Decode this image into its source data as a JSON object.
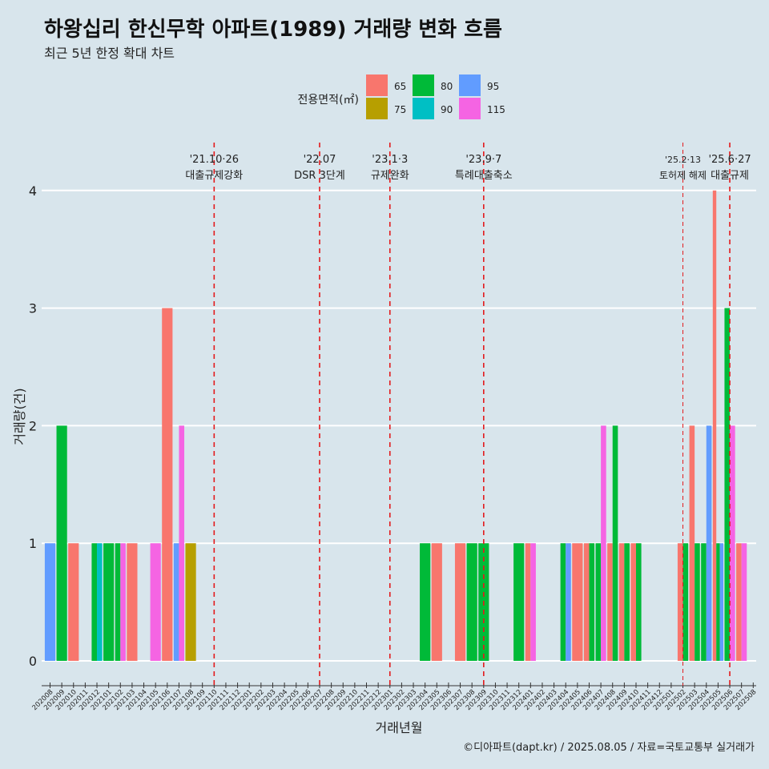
{
  "title": "하왕십리 한신무학 아파트(1989) 거래량 변화 흐름",
  "subtitle": "최근 5년 한정 확대 차트",
  "caption": "©디아파트(dapt.kr) / 2025.08.05 / 자료=국토교통부 실거래가",
  "colors": {
    "65": "#f8766d",
    "75": "#b79f00",
    "80": "#00ba38",
    "90": "#00bfc4",
    "95": "#619cff",
    "115": "#f564e3"
  },
  "chart_data": {
    "type": "bar",
    "xlabel": "거래년월",
    "ylabel": "거래량(건)",
    "ylim": [
      0,
      4
    ],
    "yticks": [
      0,
      1,
      2,
      3,
      4
    ],
    "grid": "horizontal",
    "legend": {
      "title": "전용면적(㎡)",
      "placement": "top-center",
      "entries": [
        "65",
        "75",
        "80",
        "90",
        "95",
        "115"
      ]
    },
    "categories": [
      "202008",
      "202009",
      "202010",
      "202011",
      "202012",
      "202101",
      "202102",
      "202103",
      "202104",
      "202105",
      "202106",
      "202107",
      "202108",
      "202109",
      "202110",
      "202111",
      "202112",
      "202201",
      "202202",
      "202203",
      "202204",
      "202205",
      "202206",
      "202207",
      "202208",
      "202209",
      "202210",
      "202211",
      "202212",
      "202301",
      "202302",
      "202303",
      "202304",
      "202305",
      "202306",
      "202307",
      "202308",
      "202309",
      "202310",
      "202311",
      "202312",
      "202401",
      "202402",
      "202403",
      "202404",
      "202405",
      "202406",
      "202407",
      "202408",
      "202409",
      "202410",
      "202411",
      "202412",
      "202501",
      "202502",
      "202503",
      "202504",
      "202505",
      "202506",
      "202507",
      "202508"
    ],
    "bars": [
      {
        "month": "202008",
        "area": "95",
        "count": 1
      },
      {
        "month": "202009",
        "area": "80",
        "count": 2
      },
      {
        "month": "202010",
        "area": "65",
        "count": 1
      },
      {
        "month": "202012",
        "area": "80",
        "count": 1
      },
      {
        "month": "202012",
        "area": "90",
        "count": 1
      },
      {
        "month": "202101",
        "area": "80",
        "count": 1
      },
      {
        "month": "202102",
        "area": "80",
        "count": 1
      },
      {
        "month": "202102",
        "area": "115",
        "count": 1
      },
      {
        "month": "202103",
        "area": "65",
        "count": 1
      },
      {
        "month": "202105",
        "area": "115",
        "count": 1
      },
      {
        "month": "202106",
        "area": "65",
        "count": 3
      },
      {
        "month": "202107",
        "area": "95",
        "count": 1
      },
      {
        "month": "202107",
        "area": "115",
        "count": 2
      },
      {
        "month": "202108",
        "area": "75",
        "count": 1
      },
      {
        "month": "202304",
        "area": "80",
        "count": 1
      },
      {
        "month": "202305",
        "area": "65",
        "count": 1
      },
      {
        "month": "202307",
        "area": "65",
        "count": 1
      },
      {
        "month": "202308",
        "area": "80",
        "count": 1
      },
      {
        "month": "202309",
        "area": "80",
        "count": 1
      },
      {
        "month": "202312",
        "area": "80",
        "count": 1
      },
      {
        "month": "202401",
        "area": "65",
        "count": 1
      },
      {
        "month": "202401",
        "area": "115",
        "count": 1
      },
      {
        "month": "202404",
        "area": "80",
        "count": 1
      },
      {
        "month": "202404",
        "area": "95",
        "count": 1
      },
      {
        "month": "202405",
        "area": "65",
        "count": 1
      },
      {
        "month": "202406",
        "area": "65",
        "count": 1
      },
      {
        "month": "202406",
        "area": "80",
        "count": 1
      },
      {
        "month": "202407",
        "area": "80",
        "count": 1
      },
      {
        "month": "202407",
        "area": "115",
        "count": 2
      },
      {
        "month": "202408",
        "area": "65",
        "count": 1
      },
      {
        "month": "202408",
        "area": "80",
        "count": 2
      },
      {
        "month": "202409",
        "area": "65",
        "count": 1
      },
      {
        "month": "202409",
        "area": "80",
        "count": 1
      },
      {
        "month": "202410",
        "area": "65",
        "count": 1
      },
      {
        "month": "202410",
        "area": "80",
        "count": 1
      },
      {
        "month": "202502",
        "area": "65",
        "count": 1
      },
      {
        "month": "202502",
        "area": "80",
        "count": 1
      },
      {
        "month": "202503",
        "area": "65",
        "count": 2
      },
      {
        "month": "202503",
        "area": "80",
        "count": 1
      },
      {
        "month": "202504",
        "area": "80",
        "count": 1
      },
      {
        "month": "202504",
        "area": "95",
        "count": 2
      },
      {
        "month": "202505",
        "area": "65",
        "count": 4
      },
      {
        "month": "202505",
        "area": "80",
        "count": 1
      },
      {
        "month": "202505",
        "area": "95",
        "count": 1
      },
      {
        "month": "202506",
        "area": "80",
        "count": 3
      },
      {
        "month": "202506",
        "area": "115",
        "count": 2
      },
      {
        "month": "202507",
        "area": "65",
        "count": 1
      },
      {
        "month": "202507",
        "area": "115",
        "count": 1
      }
    ],
    "events": [
      {
        "month": "202110",
        "date": "'21.10·26",
        "label": "대출규제강화",
        "style": "major"
      },
      {
        "month": "202207",
        "date": "'22.07",
        "label": "DSR 3단계",
        "style": "major"
      },
      {
        "month": "202301",
        "date": "'23.1·3",
        "label": "규제완화",
        "style": "major"
      },
      {
        "month": "202309",
        "date": "'23.9·7",
        "label": "특례대출축소",
        "style": "major"
      },
      {
        "month": "202502",
        "date": "'25.2·13",
        "label": "토허제 해제",
        "style": "minor"
      },
      {
        "month": "202506",
        "date": "'25.6·27",
        "label": "대출규제",
        "style": "major"
      }
    ]
  }
}
